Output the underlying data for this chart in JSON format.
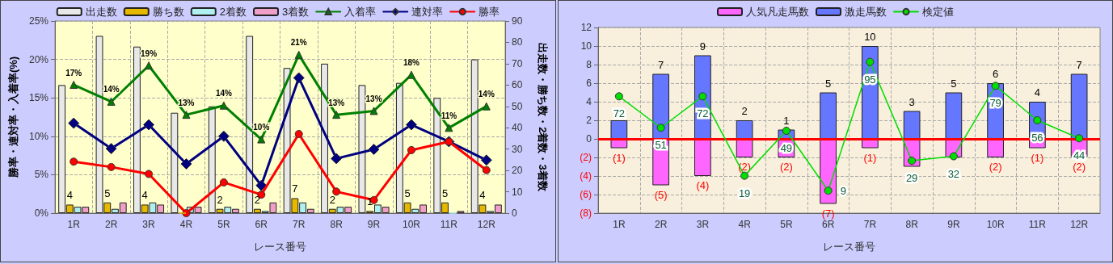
{
  "chart_data": [
    {
      "type": "bar",
      "categories": [
        "1R",
        "2R",
        "3R",
        "4R",
        "5R",
        "6R",
        "7R",
        "8R",
        "9R",
        "10R",
        "11R",
        "12R"
      ],
      "xlabel": "レース番号",
      "ylabel": "勝率・連対率・入着率(%)",
      "y2label": "出走数・勝ち数・2着数・3着数",
      "ylim": [
        0,
        25
      ],
      "yticks": [
        {
          "value": 0,
          "label": "0%"
        },
        {
          "value": 5,
          "label": "5%"
        },
        {
          "value": 10,
          "label": "10%"
        },
        {
          "value": 15,
          "label": "15%"
        },
        {
          "value": 20,
          "label": "20%"
        },
        {
          "value": 25,
          "label": "25%"
        }
      ],
      "y2lim": [
        0,
        90
      ],
      "y2ticks": [
        0,
        10,
        20,
        30,
        40,
        50,
        60,
        70,
        80,
        90
      ],
      "grid": true,
      "legend": "top",
      "series": [
        {
          "name": "出走数",
          "color": "#e8e8e8",
          "axis": "y2",
          "values": [
            60,
            83,
            78,
            47,
            50,
            83,
            68,
            70,
            60,
            61,
            54,
            72
          ]
        },
        {
          "name": "勝ち数",
          "color": "#e6b800",
          "axis": "y2",
          "values": [
            4,
            5,
            4,
            0,
            2,
            2,
            7,
            2,
            1,
            5,
            5,
            4
          ],
          "value_labels": [
            "4",
            "5",
            "4",
            null,
            "2",
            "2",
            "7",
            "2",
            "1",
            "5",
            "5",
            "4"
          ]
        },
        {
          "name": "2着数",
          "color": "#b0f0f0",
          "axis": "y2",
          "values": [
            3,
            2,
            5,
            3,
            3,
            1,
            5,
            3,
            4,
            2,
            0,
            1
          ]
        },
        {
          "name": "3着数",
          "color": "#f0a0c8",
          "axis": "y2",
          "values": [
            3,
            5,
            4,
            3,
            2,
            5,
            2,
            3,
            3,
            4,
            1,
            4
          ]
        },
        {
          "name": "入着率",
          "type": "line",
          "marker": "triangle",
          "color": "#008000",
          "values": [
            16.7,
            14.5,
            19.2,
            12.8,
            14.0,
            9.6,
            20.6,
            12.8,
            13.3,
            18.0,
            11.1,
            13.9
          ],
          "value_labels": [
            "17%",
            "14%",
            "19%",
            "13%",
            "14%",
            "10%",
            "21%",
            "13%",
            "13%",
            "18%",
            "11%",
            "14%"
          ]
        },
        {
          "name": "連対率",
          "type": "line",
          "marker": "diamond",
          "color": "#000080",
          "values": [
            11.7,
            8.4,
            11.5,
            6.4,
            10.0,
            3.6,
            17.6,
            7.1,
            8.3,
            11.5,
            9.3,
            6.9
          ]
        },
        {
          "name": "勝率",
          "type": "line",
          "marker": "circle",
          "color": "#ff0000",
          "values": [
            6.7,
            6.0,
            5.1,
            0,
            4.0,
            2.4,
            10.3,
            2.8,
            1.7,
            8.2,
            9.3,
            5.6
          ]
        }
      ]
    },
    {
      "type": "bar",
      "categories": [
        "1R",
        "2R",
        "3R",
        "4R",
        "5R",
        "6R",
        "7R",
        "8R",
        "9R",
        "10R",
        "11R",
        "12R"
      ],
      "xlabel": "レース番号",
      "stacked": true,
      "ylim": [
        -8,
        12
      ],
      "yticks": [
        {
          "value": -8,
          "label": "(8)"
        },
        {
          "value": -6,
          "label": "(6)"
        },
        {
          "value": -4,
          "label": "(4)"
        },
        {
          "value": -2,
          "label": "(2)"
        },
        0,
        2,
        4,
        6,
        8,
        10,
        12
      ],
      "y2lim": [
        -6,
        118
      ],
      "grid": true,
      "legend": "top",
      "ref_lines": [
        {
          "axis": "y",
          "value": 0,
          "color": "#ff0000"
        }
      ],
      "series": [
        {
          "name": "人気凡走馬数",
          "color": "#ff66ff",
          "values": [
            -1,
            -5,
            -4,
            -2,
            -2,
            -7,
            -1,
            -3,
            -2,
            -2,
            -1,
            -2
          ],
          "value_labels": [
            "(1)",
            "(5)",
            "(4)",
            "(2)",
            "(2)",
            "(7)",
            "(1)",
            null,
            null,
            "(2)",
            "(1)",
            "(2)"
          ]
        },
        {
          "name": "激走馬数",
          "color": "#6677ff",
          "values": [
            2,
            7,
            9,
            2,
            1,
            5,
            10,
            3,
            5,
            6,
            4,
            7
          ],
          "value_labels": [
            null,
            "7",
            "9",
            "2",
            "1",
            "5",
            "10",
            "3",
            "5",
            "6",
            "4",
            "7"
          ]
        },
        {
          "name": "検定値",
          "type": "line",
          "marker": "circle",
          "axis": "y2",
          "color": "#00dd00",
          "values": [
            72,
            51,
            72,
            19,
            49,
            9,
            95,
            29,
            32,
            79,
            56,
            44
          ],
          "value_labels": [
            "72",
            "51",
            "72",
            "19",
            "49",
            "9",
            "95",
            "29",
            "32",
            "79",
            "56",
            "44"
          ]
        }
      ]
    }
  ]
}
